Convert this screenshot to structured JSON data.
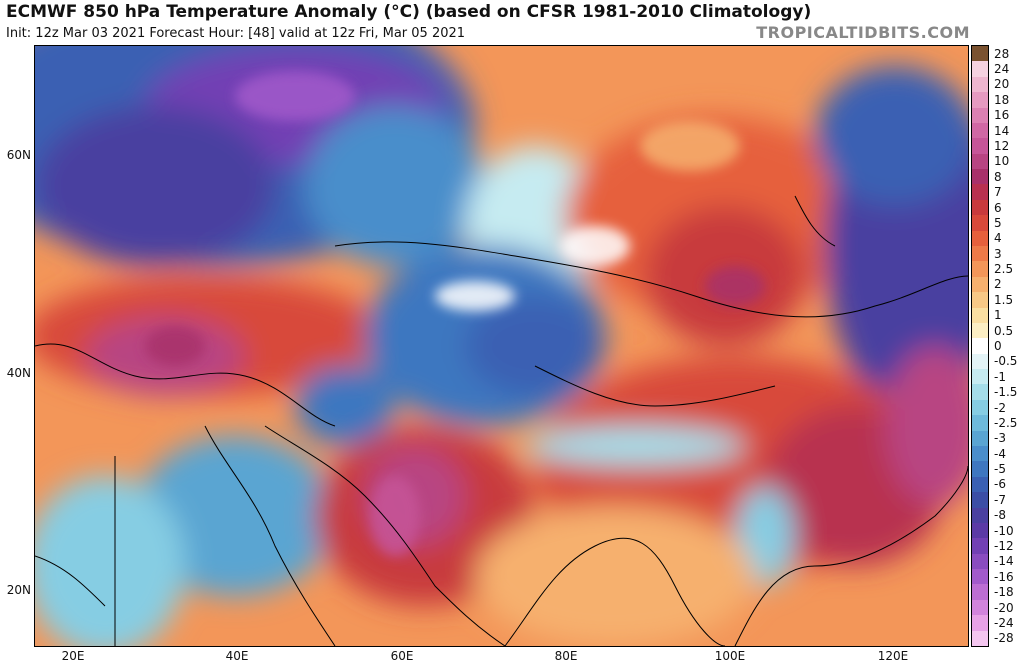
{
  "header": {
    "title": "ECMWF 850 hPa Temperature Anomaly (°C) (based on CFSR 1981-2010 Climatology)",
    "subtitle": "Init: 12z Mar 03 2021   Forecast Hour: [48]   valid at 12z Fri, Mar 05 2021",
    "brand": "TROPICALTIDBITS.COM"
  },
  "map": {
    "lat_labels": [
      "60N",
      "40N",
      "20N"
    ],
    "lon_labels": [
      "20E",
      "40E",
      "60E",
      "80E",
      "100E",
      "120E"
    ]
  },
  "colorbar": {
    "labels": [
      "28",
      "24",
      "20",
      "18",
      "16",
      "14",
      "12",
      "10",
      "8",
      "7",
      "6",
      "5",
      "4",
      "3",
      "2.5",
      "2",
      "1.5",
      "1",
      "0.5",
      "0",
      "-0.5",
      "-1",
      "-1.5",
      "-2",
      "-2.5",
      "-3",
      "-4",
      "-5",
      "-6",
      "-7",
      "-8",
      "-10",
      "-12",
      "-14",
      "-16",
      "-18",
      "-20",
      "-24",
      "-28"
    ],
    "colors": [
      "#7a5230",
      "#f5d2e0",
      "#eeb6cf",
      "#e59ac0",
      "#db80b2",
      "#d068a4",
      "#c65598",
      "#b84482",
      "#a8306a",
      "#b83050",
      "#c83a3c",
      "#d8493a",
      "#e6603c",
      "#ee7a48",
      "#f39659",
      "#f6b06e",
      "#f8c886",
      "#fadfa2",
      "#fcefc4",
      "#ffffff",
      "#e4f4f7",
      "#c6ebf1",
      "#a5dde9",
      "#86cde3",
      "#6ebadb",
      "#5aa5d2",
      "#4a8ecb",
      "#3e77c0",
      "#3a60b3",
      "#3b4ea6",
      "#4a40a0",
      "#5b3aa6",
      "#7240b4",
      "#8a4cc0",
      "#a25acb",
      "#bc6ed3",
      "#d284dc",
      "#e7a2e6",
      "#f4c6ef"
    ]
  },
  "field_colors": {
    "warm_strong": "#b84482",
    "warm": "#d8493a",
    "warm_light": "#f39659",
    "neutral": "#ffffff",
    "cool_light": "#a5dde9",
    "cool": "#3e77c0",
    "cold": "#5b3aa6"
  }
}
